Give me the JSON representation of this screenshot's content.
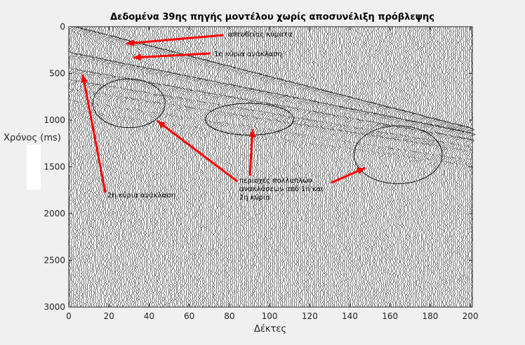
{
  "chart_data": {
    "type": "seismic-wiggle",
    "title": "Δεδομένα 39ης πηγής μοντέλου χωρίς αποσυνέλιξη πρόβλεψης",
    "xlabel": "Δέκτες",
    "ylabel": "Χρόνος (ms)",
    "xlim": [
      0,
      201
    ],
    "ylim": [
      0,
      3000
    ],
    "y_reversed": true,
    "x_ticks": [
      "0",
      "20",
      "40",
      "60",
      "80",
      "100",
      "120",
      "140",
      "160",
      "180",
      "200"
    ],
    "y_ticks": [
      "0",
      "500",
      "1000",
      "1500",
      "2000",
      "2500",
      "3000"
    ],
    "num_traces": 201,
    "events": [
      {
        "name": "direct",
        "t0": 0,
        "slope": 5.5,
        "strength": 1.4
      },
      {
        "name": "primary1",
        "t0": 290,
        "slope": 4.3,
        "strength": 1.3
      },
      {
        "name": "primary2",
        "t0": 460,
        "slope": 3.8,
        "strength": 1.0
      },
      {
        "name": "multiple_a",
        "t0": 580,
        "slope": 3.6,
        "strength": 0.8
      },
      {
        "name": "multiple_b",
        "t0": 680,
        "slope": 3.3,
        "strength": 0.7
      },
      {
        "name": "multiple_c",
        "t0": 800,
        "slope": 3.2,
        "strength": 0.6
      },
      {
        "name": "multiple_d",
        "t0": 900,
        "slope": 3.0,
        "strength": 0.5
      }
    ],
    "annotations": [
      {
        "label": "απευθείας κύματα"
      },
      {
        "label": "1η κύρια ανάκλαση"
      },
      {
        "label": "2η κύρια ανάκλαση"
      },
      {
        "label": "περιοχές πολλαπλών\nανακλάσεων από 1η και\n2η κύρια"
      }
    ],
    "regions": [
      {
        "center_x": 30,
        "center_y": 820,
        "rx": 18,
        "ry": 260
      },
      {
        "center_x": 90,
        "center_y": 990,
        "rx": 22,
        "ry": 170
      },
      {
        "center_x": 164,
        "center_y": 1370,
        "rx": 22,
        "ry": 310
      }
    ],
    "colors": {
      "trace": "#000000",
      "arrow": "#ff0000",
      "background": "#f0f0f0",
      "axes": "#ffffff"
    }
  }
}
